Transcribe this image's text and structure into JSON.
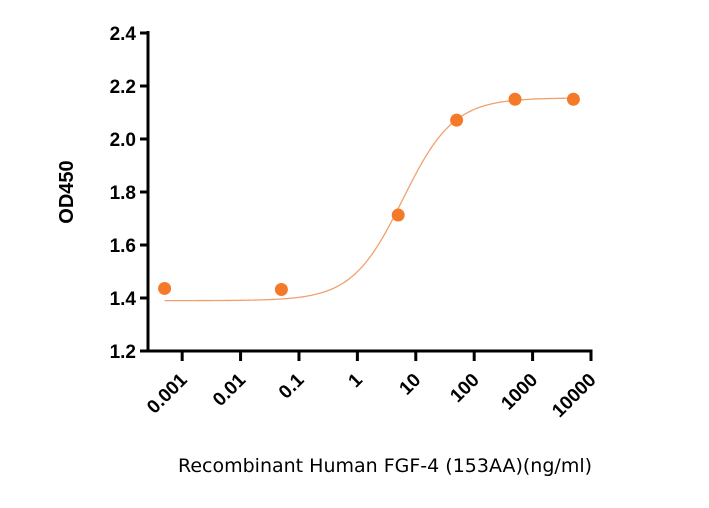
{
  "chart_data": {
    "type": "scatter",
    "title": "",
    "xlabel": "Recombinant Human FGF-4 (153AA)(ng/ml)",
    "ylabel": "OD450",
    "xscale": "log",
    "xlim": [
      0.00026,
      10000
    ],
    "ylim": [
      1.2,
      2.4
    ],
    "x_ticks": [
      0.001,
      0.01,
      0.1,
      1,
      10,
      100,
      1000,
      10000
    ],
    "x_tick_labels": [
      "0.001",
      "0.01",
      "0.1",
      "1",
      "10",
      "100",
      "1000",
      "10000"
    ],
    "y_ticks": [
      1.2,
      1.4,
      1.6,
      1.8,
      2.0,
      2.2,
      2.4
    ],
    "y_tick_labels": [
      "1.2",
      "1.4",
      "1.6",
      "1.8",
      "2.0",
      "2.2",
      "2.4"
    ],
    "grid": false,
    "legend": "none",
    "points": [
      {
        "x": 0.0005,
        "y": 1.436
      },
      {
        "x": 0.05,
        "y": 1.432
      },
      {
        "x": 5,
        "y": 1.713
      },
      {
        "x": 50,
        "y": 2.071
      },
      {
        "x": 500,
        "y": 2.15
      },
      {
        "x": 5000,
        "y": 2.15
      }
    ],
    "fit_curve": {
      "model": "4PL",
      "bottom": 1.39,
      "top": 2.155,
      "ec50": 6,
      "hill": 1.0,
      "x_range": [
        0.0005,
        5000
      ]
    },
    "colors": {
      "points": "#f47a2a",
      "curve": "#f0a070",
      "axis": "#000000"
    }
  }
}
